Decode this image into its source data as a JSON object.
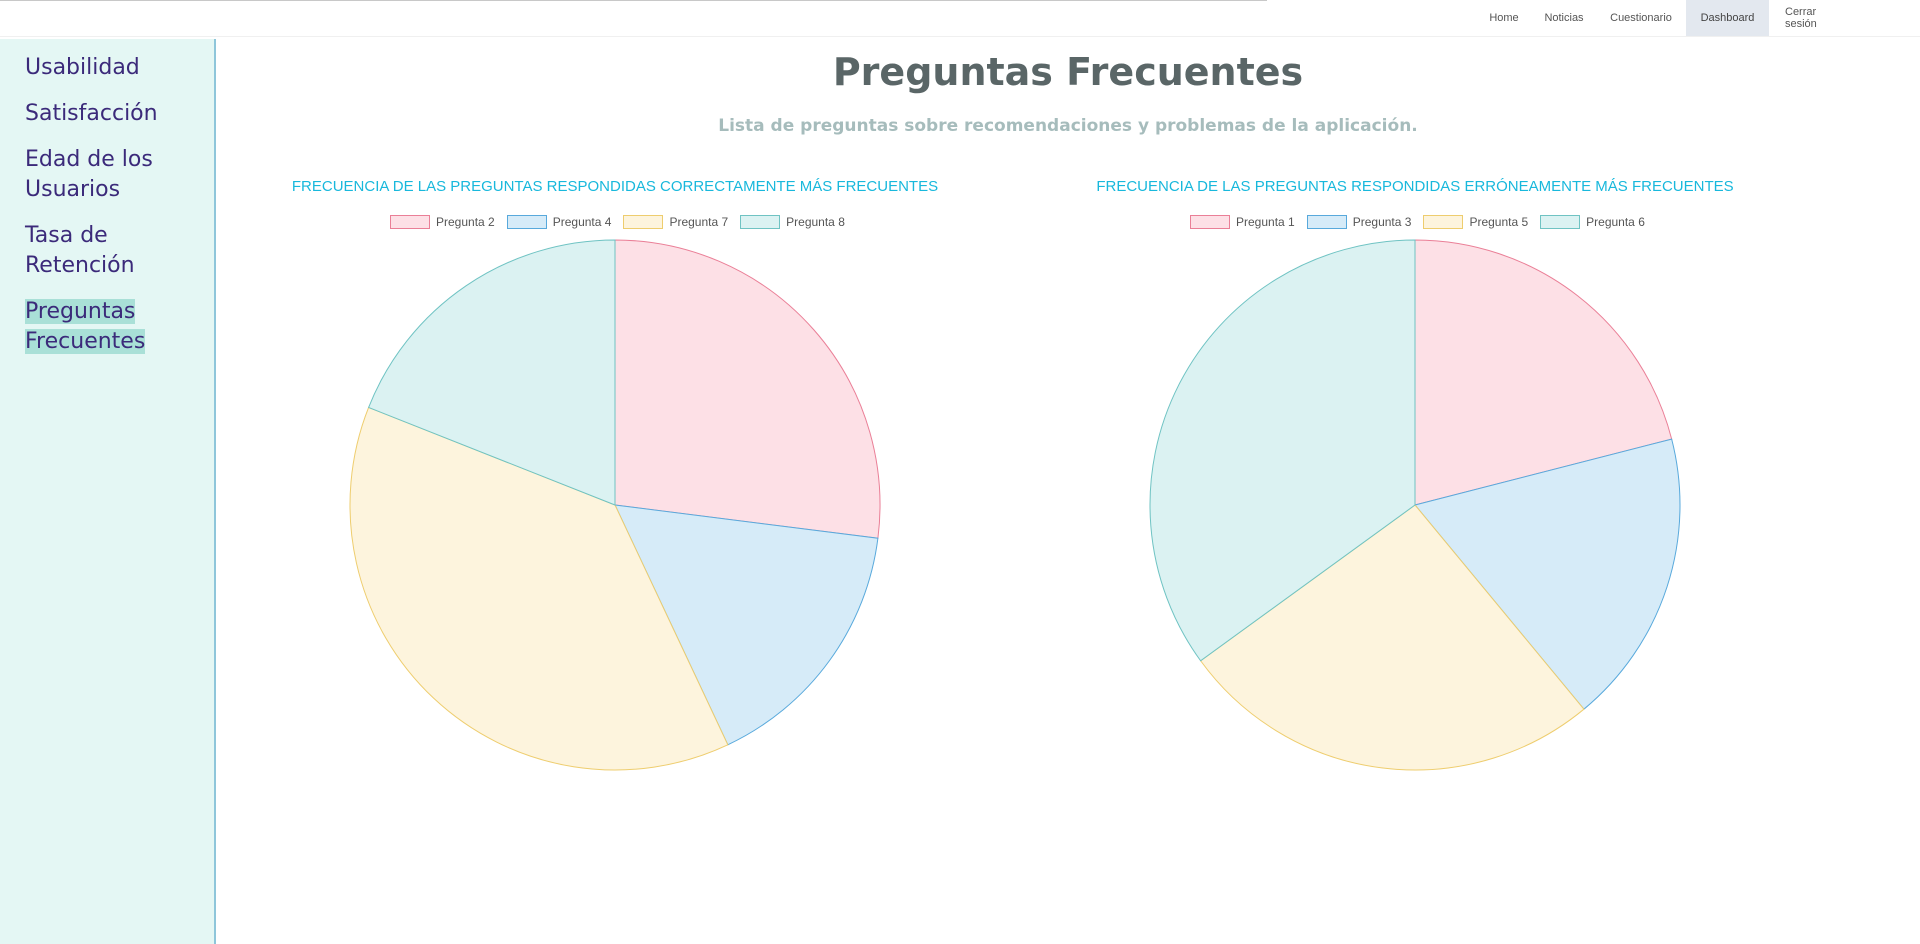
{
  "nav": {
    "items": [
      "Home",
      "Noticias",
      "Cuestionario",
      "Dashboard",
      "Cerrar sesión"
    ],
    "active": "Dashboard"
  },
  "sidebar": {
    "items": [
      "Usabilidad",
      "Satisfacción",
      "Edad de los Usuarios",
      "Tasa de Retención",
      "Preguntas Frecuentes"
    ],
    "active": "Preguntas Frecuentes"
  },
  "page": {
    "title": "Preguntas Frecuentes",
    "subtitle": "Lista de preguntas sobre recomendaciones y problemas de la aplicación."
  },
  "colors": {
    "pink_fill": "#fde0e6",
    "pink_stroke": "#ea7f97",
    "blue_fill": "#d6ebf8",
    "blue_stroke": "#58a9dc",
    "yellow_fill": "#fdf4dd",
    "yellow_stroke": "#eecd6e",
    "teal_fill": "#dbf2f2",
    "teal_stroke": "#6fc3c3"
  },
  "chart_data": [
    {
      "type": "pie",
      "title": "FRECUENCIA DE LAS PREGUNTAS RESPONDIDAS CORRECTAMENTE MÁS FRECUENTES",
      "labels": [
        "Pregunta 2",
        "Pregunta 4",
        "Pregunta 7",
        "Pregunta 8"
      ],
      "values": [
        27,
        16,
        38,
        19
      ],
      "colors": [
        "#fde0e6",
        "#d6ebf8",
        "#fdf4dd",
        "#dbf2f2"
      ],
      "stroke_colors": [
        "#ea7f97",
        "#58a9dc",
        "#eecd6e",
        "#6fc3c3"
      ],
      "legend_position": "top"
    },
    {
      "type": "pie",
      "title": "FRECUENCIA DE LAS PREGUNTAS RESPONDIDAS ERRÓNEAMENTE MÁS FRECUENTES",
      "labels": [
        "Pregunta 1",
        "Pregunta 3",
        "Pregunta 5",
        "Pregunta 6"
      ],
      "values": [
        21,
        18,
        26,
        35
      ],
      "colors": [
        "#fde0e6",
        "#d6ebf8",
        "#fdf4dd",
        "#dbf2f2"
      ],
      "stroke_colors": [
        "#ea7f97",
        "#58a9dc",
        "#eecd6e",
        "#6fc3c3"
      ],
      "legend_position": "top"
    }
  ]
}
